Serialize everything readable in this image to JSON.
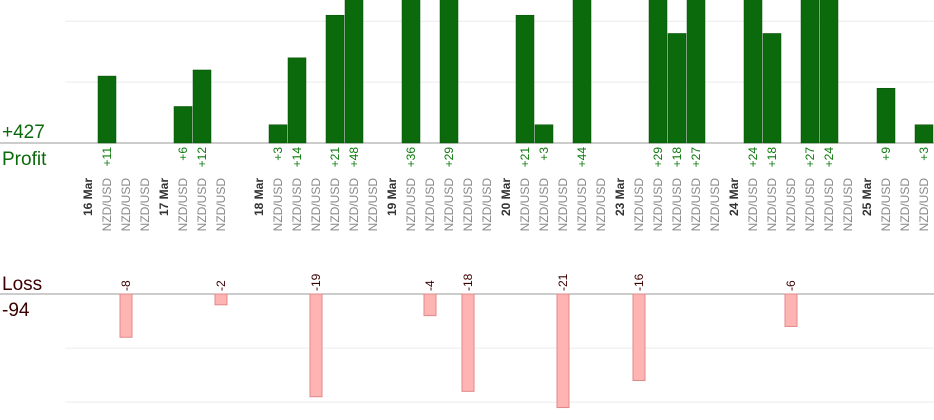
{
  "chart_data": {
    "type": "bar",
    "profit_total": "+427",
    "profit_title": "Profit",
    "loss_title": "Loss",
    "loss_total": "-94",
    "categories": [
      "16 Mar",
      "NZD/USD",
      "NZD/USD",
      "NZD/USD",
      "17 Mar",
      "NZD/USD",
      "NZD/USD",
      "NZD/USD",
      null,
      "18 Mar",
      "NZD/USD",
      "NZD/USD",
      "NZD/USD",
      "NZD/USD",
      "NZD/USD",
      "NZD/USD",
      "19 Mar",
      "NZD/USD",
      "NZD/USD",
      "NZD/USD",
      "NZD/USD",
      "NZD/USD",
      "20 Mar",
      "NZD/USD",
      "NZD/USD",
      "NZD/USD",
      "NZD/USD",
      "NZD/USD",
      "23 Mar",
      "NZD/USD",
      "NZD/USD",
      "NZD/USD",
      "NZD/USD",
      "NZD/USD",
      "24 Mar",
      "NZD/USD",
      "NZD/USD",
      "NZD/USD",
      "NZD/USD",
      "NZD/USD",
      "NZD/USD",
      "25 Mar",
      "NZD/USD",
      "NZD/USD",
      "NZD/USD"
    ],
    "date_categories": [
      "16 Mar",
      "17 Mar",
      "18 Mar",
      "19 Mar",
      "20 Mar",
      "23 Mar",
      "24 Mar",
      "25 Mar"
    ],
    "series": [
      {
        "name": "Profit",
        "color": "#0b6a0b",
        "label_color": "#0b7a0b",
        "values": [
          null,
          11,
          null,
          null,
          null,
          6,
          12,
          null,
          null,
          null,
          3,
          14,
          null,
          21,
          48,
          null,
          null,
          36,
          null,
          29,
          null,
          null,
          null,
          21,
          3,
          null,
          44,
          null,
          null,
          null,
          29,
          18,
          27,
          null,
          null,
          24,
          18,
          null,
          27,
          24,
          null,
          null,
          9,
          null,
          3
        ],
        "value_labels": [
          null,
          "+11",
          null,
          null,
          null,
          "+6",
          "+12",
          null,
          null,
          null,
          "+3",
          "+14",
          null,
          "+21",
          "+48",
          null,
          null,
          "+36",
          null,
          "+29",
          null,
          null,
          null,
          "+21",
          "+3",
          null,
          "+44",
          null,
          null,
          null,
          "+29",
          "+18",
          "+27",
          null,
          null,
          "+24",
          "+18",
          null,
          "+27",
          "+24",
          null,
          null,
          "+9",
          null,
          "+3"
        ],
        "ylim": [
          0,
          23.5
        ],
        "yticks": [
          0,
          10,
          20
        ]
      },
      {
        "name": "Loss",
        "color": "#ffb4b4",
        "label_color": "#3a0000",
        "values": [
          null,
          null,
          -8,
          null,
          null,
          null,
          null,
          -2,
          null,
          null,
          null,
          null,
          -19,
          null,
          null,
          null,
          null,
          null,
          -4,
          null,
          -18,
          null,
          null,
          null,
          null,
          -21,
          null,
          null,
          null,
          -16,
          null,
          null,
          null,
          null,
          null,
          null,
          null,
          -6,
          null,
          null,
          null,
          null,
          null,
          null,
          null
        ],
        "ylim": [
          -23.3,
          0
        ],
        "yticks": [
          -20,
          -10,
          0
        ]
      }
    ],
    "grid": true
  }
}
